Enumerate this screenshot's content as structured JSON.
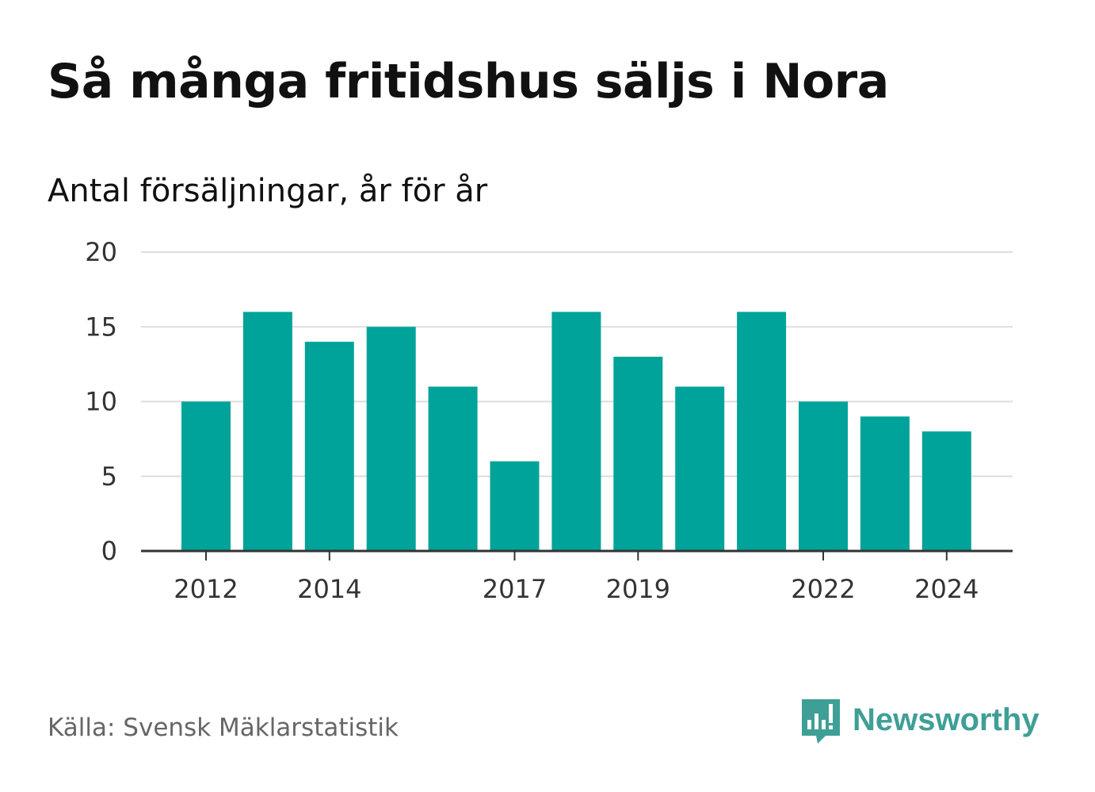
{
  "title": "Så många fritidshus säljs i Nora",
  "subtitle": "Antal försäljningar, år för år",
  "source": "Källa: Svensk Mäklarstatistik",
  "brand": {
    "name": "Newsworthy",
    "icon": "newsworthy-logo-icon",
    "color": "#3f9f97"
  },
  "colors": {
    "bar": "#00a39a",
    "grid": "#dddddd",
    "axis": "#333333"
  },
  "chart_data": {
    "type": "bar",
    "categories": [
      2012,
      2013,
      2014,
      2015,
      2016,
      2017,
      2018,
      2019,
      2020,
      2021,
      2022,
      2023,
      2024
    ],
    "values": [
      10,
      16,
      14,
      15,
      11,
      6,
      16,
      13,
      11,
      16,
      10,
      9,
      8
    ],
    "x_tick_labels": [
      "2012",
      "2014",
      "2017",
      "2019",
      "2022",
      "2024"
    ],
    "y_ticks": [
      0,
      5,
      10,
      15,
      20
    ],
    "ylim": [
      0,
      20
    ],
    "xlabel": "",
    "ylabel": "",
    "grid": true,
    "legend": "none"
  }
}
